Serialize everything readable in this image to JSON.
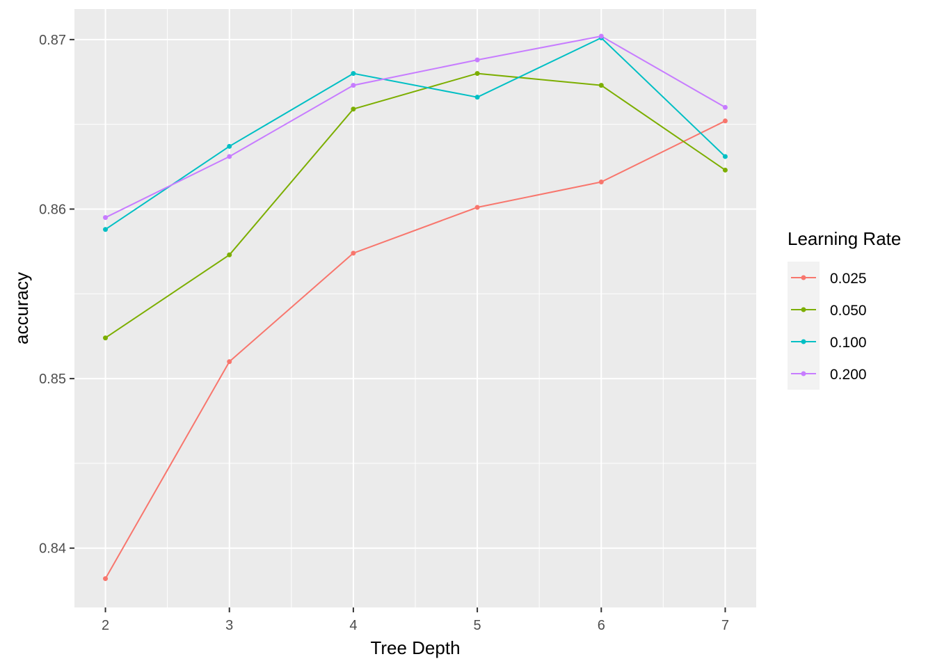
{
  "chart_data": {
    "type": "line",
    "xlabel": "Tree Depth",
    "ylabel": "accuracy",
    "x": [
      2,
      3,
      4,
      5,
      6,
      7
    ],
    "xlim": [
      1.75,
      7.25
    ],
    "ylim": [
      0.8365,
      0.8718
    ],
    "y_ticks": [
      0.84,
      0.85,
      0.86,
      0.87
    ],
    "y_tick_labels": [
      "0.84",
      "0.85",
      "0.86",
      "0.87"
    ],
    "x_tick_labels": [
      "2",
      "3",
      "4",
      "5",
      "6",
      "7"
    ],
    "grid": true,
    "legend": {
      "title": "Learning Rate",
      "position": "right"
    },
    "series": [
      {
        "name": "0.025",
        "color": "#F8766D",
        "values": [
          0.8382,
          0.851,
          0.8574,
          0.8601,
          0.8616,
          0.8652
        ]
      },
      {
        "name": "0.050",
        "color": "#7CAE00",
        "values": [
          0.8524,
          0.8573,
          0.8659,
          0.868,
          0.8673,
          0.8623
        ]
      },
      {
        "name": "0.100",
        "color": "#00BFC4",
        "values": [
          0.8588,
          0.8637,
          0.868,
          0.8666,
          0.8701,
          0.8631
        ]
      },
      {
        "name": "0.200",
        "color": "#C77CFF",
        "values": [
          0.8595,
          0.8631,
          0.8673,
          0.8688,
          0.8702,
          0.866
        ]
      }
    ]
  }
}
